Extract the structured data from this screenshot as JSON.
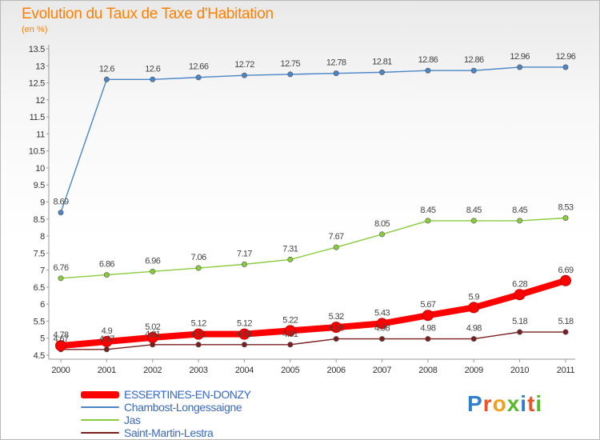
{
  "title": "Evolution du Taux de Taxe d'Habitation",
  "unit_label": "(en %)",
  "logo_text": "Proxiti",
  "chart_data": {
    "type": "line",
    "title": "Evolution du Taux de Taxe d'Habitation",
    "ylabel": "(en %)",
    "xlabel": "",
    "x": [
      "2000",
      "2001",
      "2002",
      "2003",
      "2004",
      "2005",
      "2006",
      "2007",
      "2008",
      "2009",
      "2010",
      "2011"
    ],
    "ylim": [
      4.5,
      13.5
    ],
    "yticks": [
      "4.5",
      "5",
      "5.5",
      "6",
      "6.5",
      "7",
      "7.5",
      "8",
      "8.5",
      "9",
      "9.5",
      "10",
      "10.5",
      "11",
      "11.5",
      "12",
      "12.5",
      "13",
      "13.5"
    ],
    "grid": false,
    "legend_position": "bottom-left",
    "series": [
      {
        "name": "ESSERTINES-EN-DONZY",
        "color": "#ff0000",
        "values": [
          4.78,
          4.9,
          5.02,
          5.12,
          5.12,
          5.22,
          5.32,
          5.43,
          5.67,
          5.9,
          6.28,
          6.69
        ],
        "labels": [
          "4.78",
          "4.9",
          "5.02",
          "5.12",
          "5.12",
          "5.22",
          "5.32",
          "5.43",
          "5.67",
          "5.9",
          "6.28",
          "6.69"
        ]
      },
      {
        "name": "Chambost-Longessaigne",
        "color": "#4a86c5",
        "values": [
          8.69,
          12.6,
          12.6,
          12.66,
          12.72,
          12.75,
          12.78,
          12.81,
          12.86,
          12.86,
          12.96,
          12.96
        ],
        "labels": [
          "8.69",
          "12.6",
          "12.6",
          "12.66",
          "12.72",
          "12.75",
          "12.78",
          "12.81",
          "12.86",
          "12.86",
          "12.96",
          "12.96"
        ]
      },
      {
        "name": "Jas",
        "color": "#88cc3e",
        "values": [
          6.76,
          6.86,
          6.96,
          7.06,
          7.17,
          7.31,
          7.67,
          8.05,
          8.45,
          8.45,
          8.45,
          8.53
        ],
        "labels": [
          "6.76",
          "6.86",
          "6.96",
          "7.06",
          "7.17",
          "7.31",
          "7.67",
          "8.05",
          "8.45",
          "8.45",
          "8.45",
          "8.53"
        ]
      },
      {
        "name": "Saint-Martin-Lestra",
        "color": "#7a1f1f",
        "values": [
          4.67,
          4.67,
          4.81,
          4.81,
          4.81,
          4.81,
          4.98,
          4.98,
          4.98,
          4.98,
          5.18,
          5.18
        ],
        "labels": [
          "4.67",
          "4.67",
          "4.81",
          "4.81",
          "4.81",
          "4.81",
          "4.98",
          "4.98",
          "4.98",
          "4.98",
          "5.18",
          "5.18"
        ]
      }
    ]
  }
}
